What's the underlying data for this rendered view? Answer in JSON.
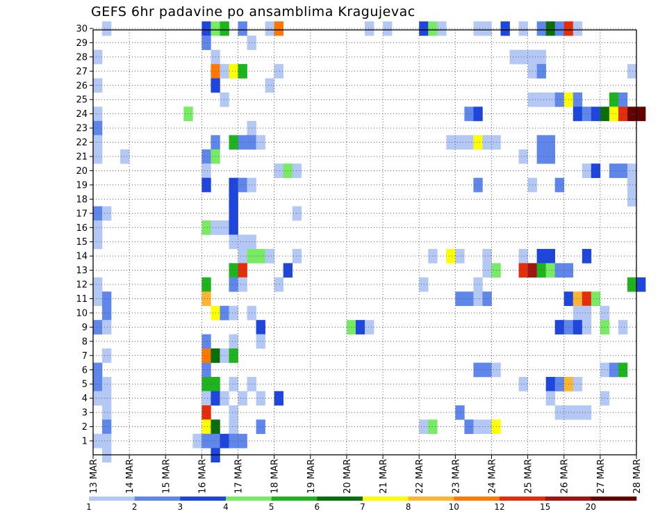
{
  "chart_data": {
    "type": "heatmap",
    "title": "GEFS 6hr padavine po ansamblima Kragujevac",
    "ylabel": "",
    "xlabel": "",
    "y_members": [
      1,
      30
    ],
    "y_ticks": [
      "1",
      "2",
      "3",
      "4",
      "5",
      "6",
      "7",
      "8",
      "9",
      "10",
      "11",
      "12",
      "13",
      "14",
      "15",
      "16",
      "17",
      "18",
      "19",
      "20",
      "21",
      "22",
      "23",
      "24",
      "25",
      "26",
      "27",
      "28",
      "29",
      "30"
    ],
    "x_ticks": [
      "13 MAR",
      "14 MAR",
      "15 MAR",
      "16 MAR",
      "17 MAR",
      "18 MAR",
      "19 MAR",
      "20 MAR",
      "21 MAR",
      "22 MAR",
      "23 MAR",
      "24 MAR",
      "25 MAR",
      "26 MAR",
      "27 MAR",
      "28 MAR"
    ],
    "x_range_days": [
      0,
      15
    ],
    "time_step_hours": 6,
    "grid": "dotted",
    "legend": {
      "placement": "bottom",
      "levels": [
        "1",
        "2",
        "3",
        "4",
        "5",
        "6",
        "7",
        "8",
        "10",
        "12",
        "15",
        "20"
      ],
      "colors": [
        "#b4c8f5",
        "#5f87eb",
        "#1e46dc",
        "#78eb64",
        "#1eb41e",
        "#0a6e0a",
        "#ffff00",
        "#ffb432",
        "#ff7800",
        "#e62d0a",
        "#a01414",
        "#640000"
      ]
    },
    "cells_note": "each cell: [member, 6h step index from 13 MAR 00z, category index into legend colors]",
    "cells": [
      [
        30,
        1,
        0
      ],
      [
        30,
        12,
        2
      ],
      [
        30,
        13,
        3
      ],
      [
        30,
        14,
        4
      ],
      [
        30,
        16,
        1
      ],
      [
        30,
        19,
        0
      ],
      [
        30,
        20,
        8
      ],
      [
        30,
        30,
        0
      ],
      [
        30,
        32,
        0
      ],
      [
        30,
        36,
        2
      ],
      [
        30,
        37,
        3
      ],
      [
        30,
        38,
        0
      ],
      [
        30,
        42,
        0
      ],
      [
        30,
        43,
        0
      ],
      [
        30,
        45,
        2
      ],
      [
        30,
        47,
        0
      ],
      [
        30,
        49,
        1
      ],
      [
        30,
        50,
        5
      ],
      [
        30,
        51,
        1
      ],
      [
        30,
        52,
        9
      ],
      [
        30,
        53,
        0
      ],
      [
        29,
        12,
        1
      ],
      [
        29,
        17,
        0
      ],
      [
        28,
        0,
        0
      ],
      [
        28,
        13,
        0
      ],
      [
        28,
        46,
        0
      ],
      [
        28,
        47,
        0
      ],
      [
        28,
        48,
        0
      ],
      [
        28,
        49,
        0
      ],
      [
        27,
        13,
        8
      ],
      [
        27,
        14,
        0
      ],
      [
        27,
        15,
        6
      ],
      [
        27,
        16,
        4
      ],
      [
        27,
        20,
        0
      ],
      [
        27,
        48,
        0
      ],
      [
        27,
        49,
        1
      ],
      [
        27,
        59,
        0
      ],
      [
        26,
        0,
        0
      ],
      [
        26,
        13,
        2
      ],
      [
        26,
        19,
        0
      ],
      [
        25,
        14,
        0
      ],
      [
        25,
        48,
        0
      ],
      [
        25,
        49,
        0
      ],
      [
        25,
        50,
        0
      ],
      [
        25,
        51,
        1
      ],
      [
        25,
        52,
        6
      ],
      [
        25,
        53,
        1
      ],
      [
        25,
        57,
        4
      ],
      [
        25,
        58,
        1
      ],
      [
        24,
        0,
        0
      ],
      [
        24,
        10,
        3
      ],
      [
        24,
        41,
        1
      ],
      [
        24,
        42,
        2
      ],
      [
        24,
        53,
        2
      ],
      [
        24,
        54,
        1
      ],
      [
        24,
        55,
        2
      ],
      [
        24,
        56,
        5
      ],
      [
        24,
        57,
        6
      ],
      [
        24,
        58,
        9
      ],
      [
        24,
        59,
        11
      ],
      [
        24,
        60,
        11
      ],
      [
        23,
        0,
        1
      ],
      [
        23,
        17,
        0
      ],
      [
        22,
        0,
        0
      ],
      [
        22,
        13,
        1
      ],
      [
        22,
        15,
        4
      ],
      [
        22,
        16,
        1
      ],
      [
        22,
        17,
        1
      ],
      [
        22,
        18,
        0
      ],
      [
        22,
        39,
        0
      ],
      [
        22,
        40,
        0
      ],
      [
        22,
        41,
        0
      ],
      [
        22,
        42,
        6
      ],
      [
        22,
        43,
        0
      ],
      [
        22,
        44,
        0
      ],
      [
        22,
        49,
        1
      ],
      [
        22,
        50,
        1
      ],
      [
        21,
        0,
        0
      ],
      [
        21,
        3,
        0
      ],
      [
        21,
        12,
        1
      ],
      [
        21,
        13,
        3
      ],
      [
        21,
        47,
        0
      ],
      [
        21,
        49,
        1
      ],
      [
        21,
        50,
        1
      ],
      [
        20,
        12,
        0
      ],
      [
        20,
        20,
        0
      ],
      [
        20,
        21,
        3
      ],
      [
        20,
        22,
        0
      ],
      [
        20,
        54,
        0
      ],
      [
        20,
        55,
        2
      ],
      [
        20,
        57,
        1
      ],
      [
        20,
        58,
        1
      ],
      [
        20,
        59,
        0
      ],
      [
        19,
        12,
        2
      ],
      [
        19,
        15,
        2
      ],
      [
        19,
        16,
        1
      ],
      [
        19,
        17,
        0
      ],
      [
        19,
        42,
        1
      ],
      [
        19,
        48,
        0
      ],
      [
        19,
        51,
        1
      ],
      [
        19,
        59,
        0
      ],
      [
        18,
        15,
        2
      ],
      [
        18,
        59,
        0
      ],
      [
        17,
        0,
        1
      ],
      [
        17,
        1,
        0
      ],
      [
        17,
        15,
        2
      ],
      [
        17,
        22,
        0
      ],
      [
        16,
        0,
        0
      ],
      [
        16,
        12,
        3
      ],
      [
        16,
        13,
        0
      ],
      [
        16,
        14,
        0
      ],
      [
        16,
        15,
        2
      ],
      [
        15,
        0,
        0
      ],
      [
        15,
        15,
        0
      ],
      [
        15,
        16,
        0
      ],
      [
        15,
        17,
        0
      ],
      [
        14,
        16,
        0
      ],
      [
        14,
        17,
        3
      ],
      [
        14,
        18,
        3
      ],
      [
        14,
        19,
        0
      ],
      [
        14,
        22,
        0
      ],
      [
        14,
        37,
        0
      ],
      [
        14,
        39,
        6
      ],
      [
        14,
        40,
        0
      ],
      [
        14,
        43,
        0
      ],
      [
        14,
        47,
        0
      ],
      [
        14,
        49,
        2
      ],
      [
        14,
        50,
        2
      ],
      [
        14,
        54,
        2
      ],
      [
        13,
        15,
        4
      ],
      [
        13,
        16,
        9
      ],
      [
        13,
        21,
        2
      ],
      [
        13,
        43,
        0
      ],
      [
        13,
        44,
        3
      ],
      [
        13,
        47,
        9
      ],
      [
        13,
        48,
        10
      ],
      [
        13,
        49,
        4
      ],
      [
        13,
        50,
        3
      ],
      [
        13,
        51,
        1
      ],
      [
        13,
        52,
        1
      ],
      [
        12,
        0,
        0
      ],
      [
        12,
        12,
        4
      ],
      [
        12,
        15,
        1
      ],
      [
        12,
        16,
        0
      ],
      [
        12,
        20,
        0
      ],
      [
        12,
        36,
        0
      ],
      [
        12,
        42,
        0
      ],
      [
        12,
        59,
        4
      ],
      [
        12,
        60,
        2
      ],
      [
        11,
        0,
        0
      ],
      [
        11,
        1,
        1
      ],
      [
        11,
        12,
        7
      ],
      [
        11,
        40,
        1
      ],
      [
        11,
        41,
        1
      ],
      [
        11,
        42,
        0
      ],
      [
        11,
        43,
        1
      ],
      [
        11,
        52,
        2
      ],
      [
        11,
        53,
        7
      ],
      [
        11,
        54,
        9
      ],
      [
        11,
        55,
        3
      ],
      [
        10,
        1,
        1
      ],
      [
        10,
        13,
        6
      ],
      [
        10,
        14,
        1
      ],
      [
        10,
        15,
        0
      ],
      [
        10,
        17,
        0
      ],
      [
        10,
        53,
        0
      ],
      [
        10,
        54,
        0
      ],
      [
        10,
        56,
        0
      ],
      [
        9,
        0,
        1
      ],
      [
        9,
        1,
        0
      ],
      [
        9,
        18,
        2
      ],
      [
        9,
        28,
        3
      ],
      [
        9,
        29,
        2
      ],
      [
        9,
        30,
        0
      ],
      [
        9,
        51,
        2
      ],
      [
        9,
        52,
        1
      ],
      [
        9,
        53,
        2
      ],
      [
        9,
        54,
        0
      ],
      [
        9,
        56,
        3
      ],
      [
        9,
        58,
        0
      ],
      [
        8,
        12,
        1
      ],
      [
        8,
        15,
        0
      ],
      [
        8,
        18,
        0
      ],
      [
        7,
        1,
        0
      ],
      [
        7,
        12,
        8
      ],
      [
        7,
        13,
        5
      ],
      [
        7,
        14,
        0
      ],
      [
        7,
        15,
        4
      ],
      [
        6,
        0,
        1
      ],
      [
        6,
        12,
        1
      ],
      [
        6,
        42,
        1
      ],
      [
        6,
        43,
        1
      ],
      [
        6,
        44,
        0
      ],
      [
        6,
        56,
        0
      ],
      [
        6,
        57,
        1
      ],
      [
        6,
        58,
        4
      ],
      [
        5,
        0,
        1
      ],
      [
        5,
        1,
        0
      ],
      [
        5,
        12,
        4
      ],
      [
        5,
        13,
        4
      ],
      [
        5,
        15,
        0
      ],
      [
        5,
        17,
        0
      ],
      [
        5,
        47,
        0
      ],
      [
        5,
        50,
        2
      ],
      [
        5,
        51,
        1
      ],
      [
        5,
        52,
        7
      ],
      [
        5,
        53,
        0
      ],
      [
        4,
        0,
        0
      ],
      [
        4,
        1,
        0
      ],
      [
        4,
        12,
        0
      ],
      [
        4,
        13,
        2
      ],
      [
        4,
        14,
        0
      ],
      [
        4,
        16,
        0
      ],
      [
        4,
        18,
        0
      ],
      [
        4,
        20,
        2
      ],
      [
        4,
        50,
        0
      ],
      [
        4,
        56,
        0
      ],
      [
        3,
        1,
        0
      ],
      [
        3,
        12,
        9
      ],
      [
        3,
        15,
        0
      ],
      [
        3,
        40,
        1
      ],
      [
        3,
        51,
        0
      ],
      [
        3,
        52,
        0
      ],
      [
        3,
        53,
        0
      ],
      [
        3,
        54,
        0
      ],
      [
        2,
        1,
        1
      ],
      [
        2,
        12,
        6
      ],
      [
        2,
        13,
        5
      ],
      [
        2,
        15,
        0
      ],
      [
        2,
        18,
        1
      ],
      [
        2,
        36,
        0
      ],
      [
        2,
        37,
        3
      ],
      [
        2,
        41,
        1
      ],
      [
        2,
        42,
        0
      ],
      [
        2,
        43,
        0
      ],
      [
        2,
        44,
        6
      ],
      [
        1,
        0,
        0
      ],
      [
        1,
        1,
        0
      ],
      [
        1,
        11,
        0
      ],
      [
        1,
        12,
        1
      ],
      [
        1,
        13,
        1
      ],
      [
        1,
        14,
        2
      ],
      [
        1,
        15,
        1
      ],
      [
        1,
        16,
        1
      ],
      [
        0,
        1,
        0
      ],
      [
        0,
        13,
        2
      ]
    ]
  }
}
